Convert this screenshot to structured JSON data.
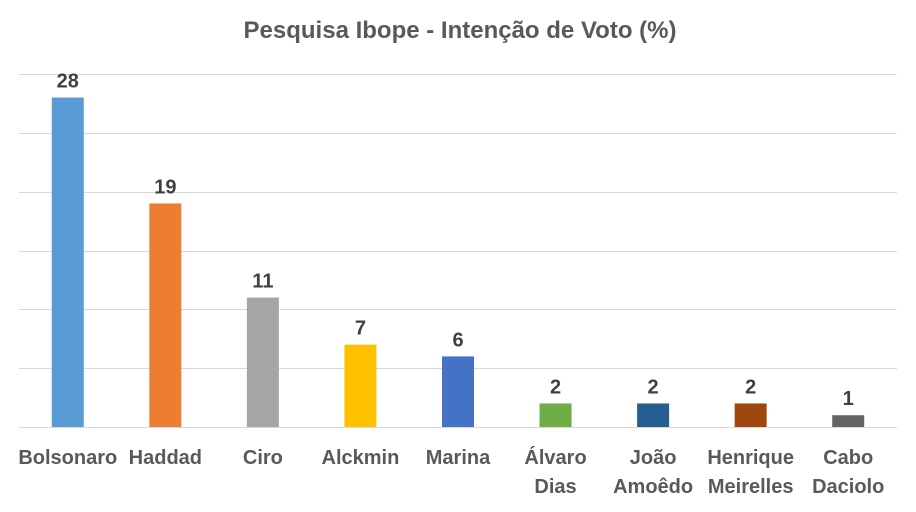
{
  "chart_data": {
    "type": "bar",
    "title": "Pesquisa Ibope - Intenção de Voto (%)",
    "categories": [
      [
        "Bolsonaro"
      ],
      [
        "Haddad"
      ],
      [
        "Ciro"
      ],
      [
        "Alckmin"
      ],
      [
        "Marina"
      ],
      [
        "Álvaro",
        "Dias"
      ],
      [
        "João",
        "Amoêdo"
      ],
      [
        "Henrique",
        "Meirelles"
      ],
      [
        "Cabo",
        "Daciolo"
      ]
    ],
    "values": [
      28,
      19,
      11,
      7,
      6,
      2,
      2,
      2,
      1
    ],
    "colors": [
      "#5b9bd5",
      "#ed7d31",
      "#a5a5a5",
      "#ffc000",
      "#4472c4",
      "#70ad47",
      "#255e91",
      "#9e480e",
      "#636363"
    ],
    "ylim": [
      0,
      30
    ],
    "grid": true,
    "legend": "none",
    "xlabel": "",
    "ylabel": ""
  }
}
